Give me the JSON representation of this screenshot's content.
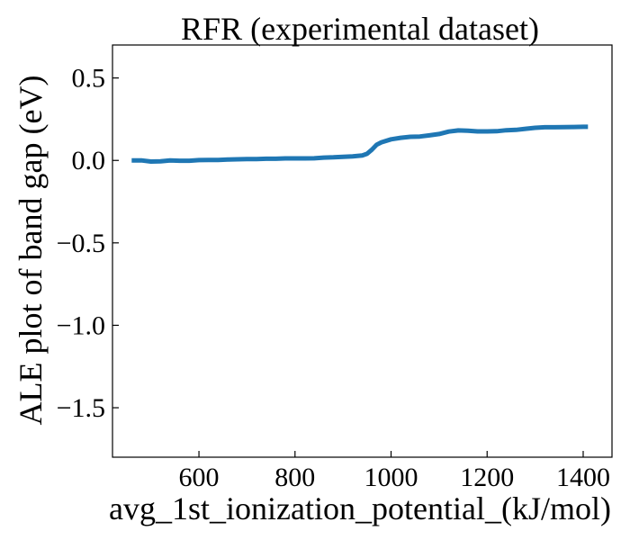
{
  "chart_data": {
    "type": "line",
    "title": "RFR (experimental dataset)",
    "xlabel": "avg_1st_ionization_potential_(kJ/mol)",
    "ylabel": "ALE plot of band gap (eV)",
    "xlim": [
      420,
      1460
    ],
    "ylim": [
      -1.8,
      0.7
    ],
    "xticks": [
      600,
      800,
      1000,
      1200,
      1400
    ],
    "xtick_labels": [
      "600",
      "800",
      "1000",
      "1200",
      "1400"
    ],
    "yticks": [
      0.5,
      0.0,
      -0.5,
      -1.0,
      -1.5
    ],
    "ytick_labels": [
      "0.5",
      "0.0",
      "−0.5",
      "−1.0",
      "−1.5"
    ],
    "grid": false,
    "series": [
      {
        "color": "#1f77b4",
        "x": [
          460,
          480,
          500,
          520,
          540,
          560,
          580,
          600,
          620,
          640,
          660,
          680,
          700,
          720,
          740,
          760,
          780,
          800,
          820,
          840,
          860,
          880,
          900,
          920,
          940,
          950,
          960,
          970,
          980,
          1000,
          1020,
          1040,
          1060,
          1080,
          1100,
          1120,
          1140,
          1160,
          1180,
          1200,
          1220,
          1240,
          1260,
          1280,
          1300,
          1320,
          1340,
          1360,
          1380,
          1400,
          1410
        ],
        "y": [
          0.0,
          0.0,
          -0.007,
          -0.005,
          0.0,
          -0.002,
          -0.002,
          0.002,
          0.003,
          0.003,
          0.005,
          0.007,
          0.008,
          0.008,
          0.01,
          0.01,
          0.012,
          0.012,
          0.012,
          0.013,
          0.017,
          0.019,
          0.022,
          0.025,
          0.03,
          0.04,
          0.065,
          0.095,
          0.11,
          0.128,
          0.137,
          0.143,
          0.145,
          0.152,
          0.16,
          0.175,
          0.182,
          0.18,
          0.176,
          0.176,
          0.177,
          0.183,
          0.185,
          0.192,
          0.198,
          0.201,
          0.201,
          0.202,
          0.203,
          0.204,
          0.204
        ]
      }
    ]
  }
}
